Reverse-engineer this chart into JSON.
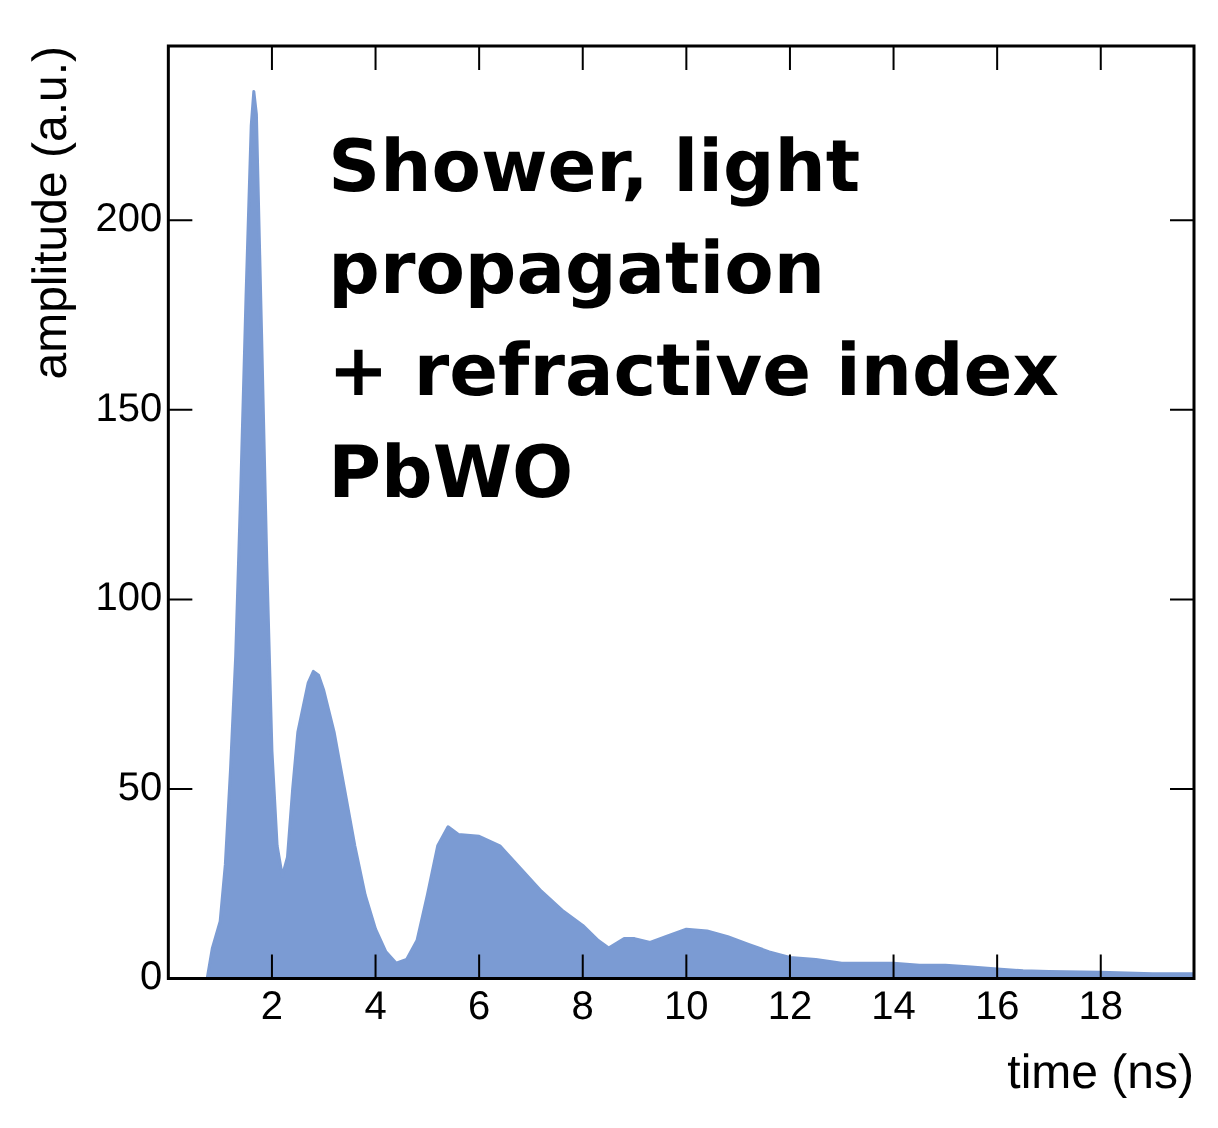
{
  "chart_data": {
    "type": "area",
    "xlabel": "time (ns)",
    "ylabel": "amplitude (a.u.)",
    "annotations": [
      "Shower, light\npropagation\n+ refractive index\nPbWO"
    ],
    "x": [
      0,
      0.75,
      0.85,
      1.0,
      1.1,
      1.2,
      1.3,
      1.4,
      1.5,
      1.6,
      1.65,
      1.7,
      1.8,
      1.9,
      2.0,
      2.1,
      2.2,
      2.3,
      2.4,
      2.5,
      2.7,
      2.8,
      2.9,
      3.0,
      3.2,
      3.4,
      3.6,
      3.8,
      4.0,
      4.2,
      4.4,
      4.6,
      4.8,
      5.0,
      5.2,
      5.4,
      5.6,
      6.0,
      6.4,
      6.8,
      7.2,
      7.6,
      8.0,
      8.3,
      8.5,
      8.8,
      9.0,
      9.3,
      9.6,
      10.0,
      10.4,
      10.8,
      11.2,
      11.6,
      12.0,
      12.5,
      13.0,
      13.5,
      14.0,
      14.5,
      15.0,
      15.5,
      16.0,
      16.5,
      17.0,
      18.0,
      19.0,
      19.8
    ],
    "series": [
      {
        "color": "#7b9bd3",
        "values": [
          0,
          0,
          8,
          15,
          30,
          55,
          85,
          130,
          180,
          225,
          234,
          228,
          170,
          110,
          60,
          35,
          27,
          32,
          50,
          65,
          78,
          81,
          80,
          76,
          65,
          50,
          35,
          22,
          13,
          7,
          4,
          5,
          10,
          22,
          35,
          40,
          38,
          37.5,
          35,
          29,
          23,
          18,
          14,
          10,
          8,
          10.5,
          10.5,
          9.5,
          11,
          13,
          12.5,
          11,
          9,
          7,
          5.5,
          5,
          4,
          4,
          4,
          3.5,
          3.5,
          3,
          2.5,
          2,
          1.8,
          1.6,
          1.2,
          1.2
        ]
      }
    ],
    "xlim": [
      0,
      19.8
    ],
    "xticks": [
      2,
      4,
      6,
      8,
      10,
      12,
      14,
      16,
      18
    ],
    "ylim": [
      0,
      246
    ],
    "yticks": [
      0,
      50,
      100,
      150,
      200
    ],
    "grid": false,
    "legend": false
  }
}
